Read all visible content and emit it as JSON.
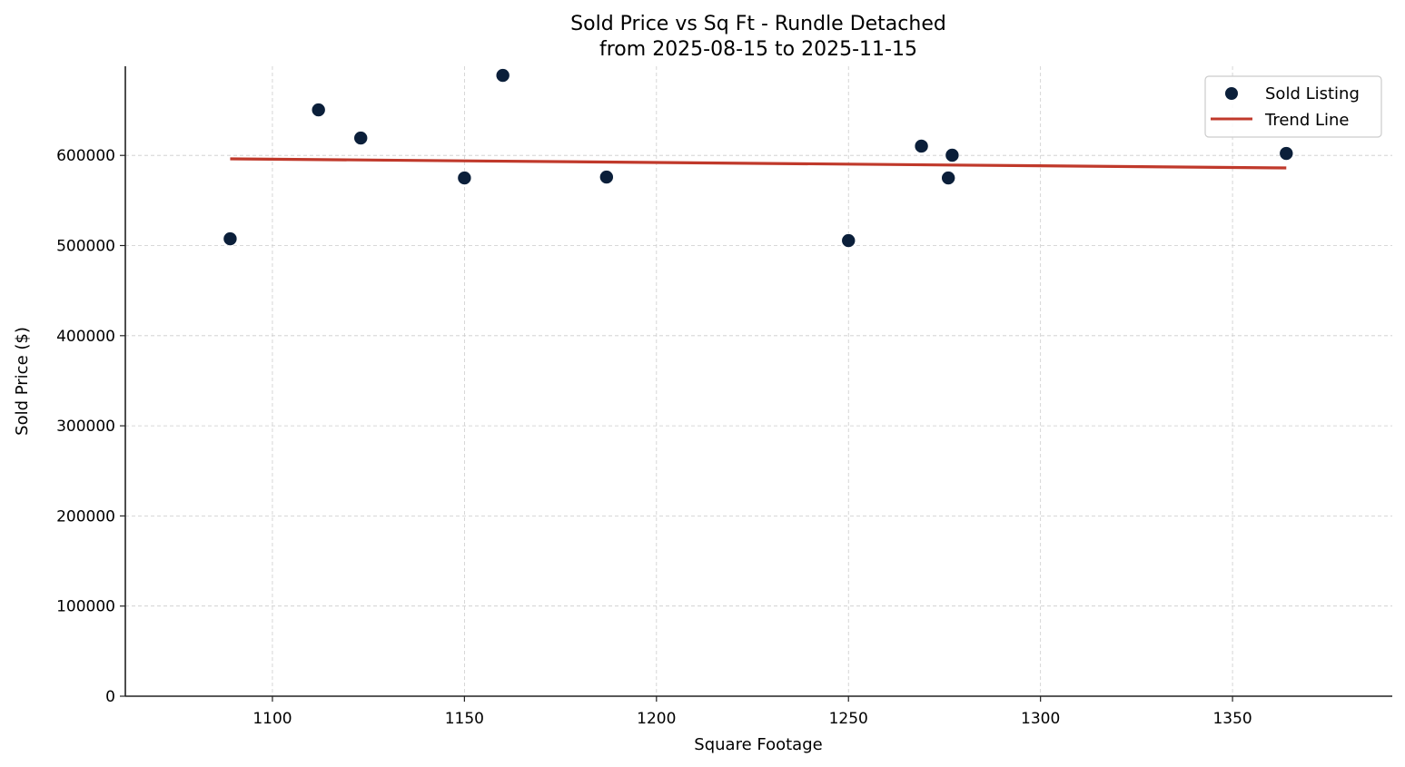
{
  "chart_data": {
    "type": "scatter",
    "title": "Sold Price vs Sq Ft - Rundle Detached",
    "subtitle": "from 2025-08-15 to 2025-11-15",
    "xlabel": "Square Footage",
    "ylabel": "Sold Price ($)",
    "xlim": [
      1061.7,
      1391.6
    ],
    "ylim": [
      0,
      698900
    ],
    "xticks": [
      1100,
      1150,
      1200,
      1250,
      1300,
      1350
    ],
    "yticks": [
      0,
      100000,
      200000,
      300000,
      400000,
      500000,
      600000
    ],
    "xtick_labels": [
      "1100",
      "1150",
      "1200",
      "1250",
      "1300",
      "1350"
    ],
    "ytick_labels": [
      "0",
      "100000",
      "200000",
      "300000",
      "400000",
      "500000",
      "600000"
    ],
    "grid": true,
    "legend_position": "upper right",
    "series": [
      {
        "name": "Sold Listing",
        "type": "scatter",
        "color": "#0b1f3a",
        "x": [
          1089,
          1112,
          1123,
          1150,
          1160,
          1187,
          1250,
          1269,
          1277,
          1276,
          1364
        ],
        "y": [
          507500,
          650500,
          619300,
          575000,
          688800,
          576000,
          505500,
          610300,
          600200,
          575000,
          602200
        ]
      },
      {
        "name": "Trend Line",
        "type": "line",
        "color": "#c0392b",
        "x": [
          1089,
          1364
        ],
        "y": [
          596200,
          586100
        ]
      }
    ]
  },
  "legend": {
    "items": [
      {
        "label": "Sold Listing"
      },
      {
        "label": "Trend Line"
      }
    ]
  }
}
